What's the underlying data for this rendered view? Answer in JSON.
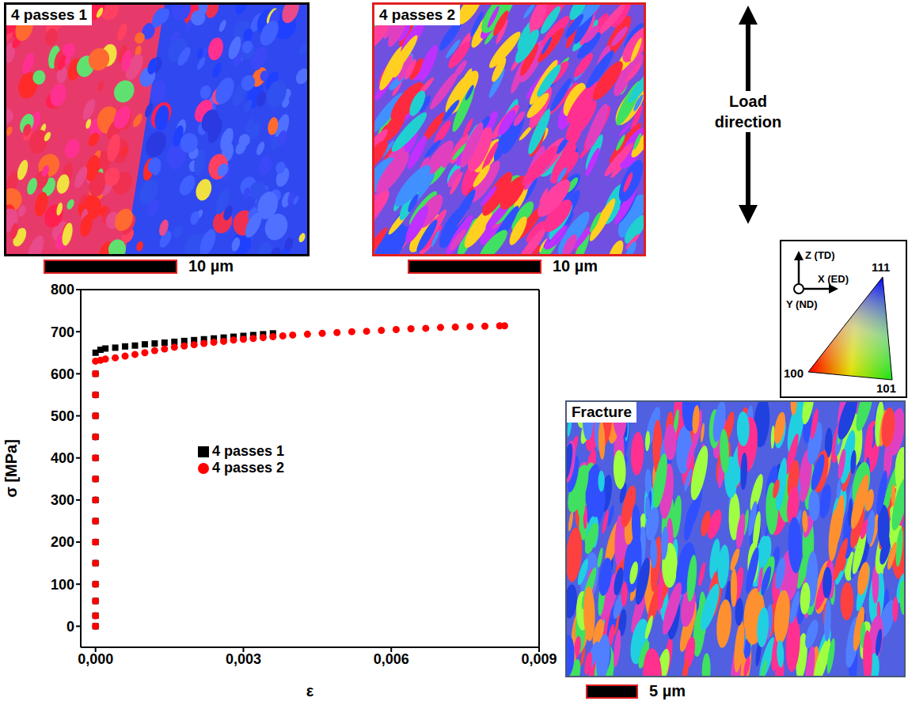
{
  "figure": {
    "panels": [
      {
        "label": "4 passes 1",
        "scale_bar": "10 µm"
      },
      {
        "label": "4 passes 2",
        "scale_bar": "10 µm"
      },
      {
        "label": "Fracture",
        "scale_bar": "5 µm"
      }
    ],
    "load_label": "Load direction",
    "ipf_key": {
      "axes": [
        "Z (TD)",
        "X (ED)",
        "Y (ND)"
      ],
      "corners": [
        "111",
        "100",
        "101"
      ]
    }
  },
  "chart_data": {
    "type": "scatter",
    "xlabel": "ε",
    "ylabel": "σ [MPa]",
    "xlim": [
      -0.0003,
      0.009
    ],
    "ylim": [
      -50,
      800
    ],
    "xticks": [
      {
        "value": 0,
        "label": "0,000"
      },
      {
        "value": 0.003,
        "label": "0,003"
      },
      {
        "value": 0.006,
        "label": "0,006"
      },
      {
        "value": 0.009,
        "label": "0,009"
      }
    ],
    "yticks": [
      0,
      100,
      200,
      300,
      400,
      500,
      600,
      700,
      800
    ],
    "grid": false,
    "legend": "center",
    "series": [
      {
        "name": "4 passes 1",
        "color": "#000000",
        "marker": "square",
        "x": [
          0,
          0,
          0,
          0,
          0,
          0,
          0,
          0,
          0,
          0,
          0,
          0,
          0,
          0,
          0,
          0.0001,
          0.0002,
          0.0004,
          0.0006,
          0.0008,
          0.001,
          0.0012,
          0.0014,
          0.0016,
          0.0018,
          0.002,
          0.0022,
          0.0024,
          0.0026,
          0.0028,
          0.003,
          0.0032,
          0.0034,
          0.0036
        ],
        "values": [
          0,
          25,
          60,
          100,
          150,
          200,
          250,
          300,
          350,
          400,
          450,
          500,
          550,
          600,
          650,
          657,
          660,
          662,
          665,
          667,
          670,
          672,
          674,
          676,
          678,
          680,
          682,
          684,
          686,
          688,
          690,
          692,
          694,
          696
        ]
      },
      {
        "name": "4 passes 2",
        "color": "#ff0000",
        "marker": "circle",
        "x": [
          0,
          0,
          0,
          0,
          0,
          0,
          0,
          0,
          0,
          0,
          0,
          0,
          0,
          0,
          0,
          0.0001,
          0.0002,
          0.0004,
          0.0006,
          0.0008,
          0.001,
          0.0012,
          0.0014,
          0.0016,
          0.0018,
          0.002,
          0.0022,
          0.0024,
          0.0026,
          0.0028,
          0.003,
          0.0032,
          0.0034,
          0.0036,
          0.0038,
          0.004,
          0.0043,
          0.0046,
          0.0049,
          0.0052,
          0.0055,
          0.0058,
          0.0061,
          0.0064,
          0.0067,
          0.007,
          0.0073,
          0.0076,
          0.0079,
          0.0082,
          0.0083
        ],
        "values": [
          0,
          25,
          60,
          100,
          150,
          200,
          250,
          300,
          350,
          400,
          450,
          500,
          550,
          600,
          630,
          632,
          635,
          638,
          642,
          646,
          650,
          655,
          659,
          663,
          666,
          669,
          672,
          675,
          677,
          680,
          682,
          684,
          686,
          688,
          690,
          692,
          694,
          696,
          698,
          700,
          701,
          703,
          705,
          707,
          708,
          710,
          711,
          712,
          713,
          714,
          714
        ]
      }
    ]
  }
}
